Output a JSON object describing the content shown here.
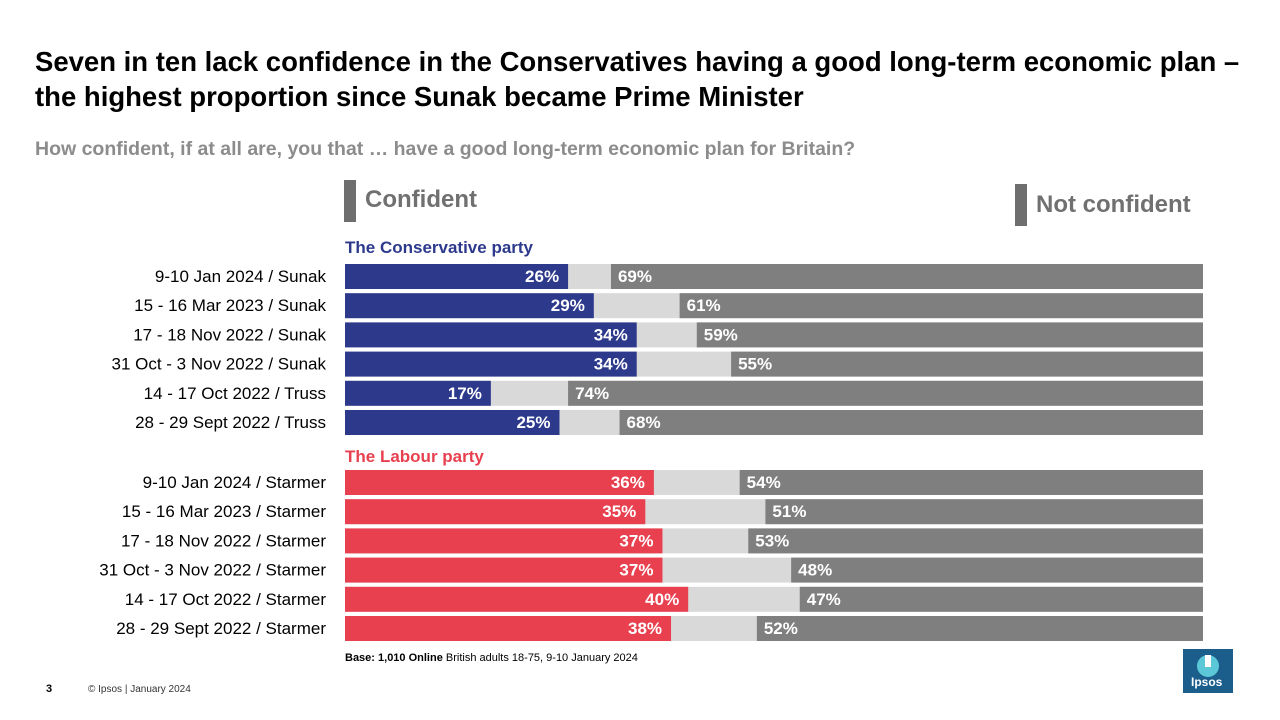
{
  "title": "Seven in ten lack confidence in the Conservatives having a good long-term economic plan – the highest proportion since Sunak became Prime Minister",
  "subtitle": "How confident, if at all are, you that … have a good long-term economic plan for Britain?",
  "legend": {
    "confident": "Confident",
    "not_confident": "Not confident"
  },
  "colors": {
    "conservative": "#2d3a8c",
    "labour": "#e8404f",
    "not_confident": "#7f7f7f",
    "neither": "#d9d9d9"
  },
  "chart_data": {
    "type": "bar",
    "stacked": true,
    "orientation": "horizontal",
    "xlim": [
      0,
      100
    ],
    "groups": [
      {
        "name": "The Conservative party",
        "color": "#2d3a8c",
        "rows": [
          {
            "label": "9-10 Jan 2024 / Sunak",
            "confident": 26,
            "not_confident": 69
          },
          {
            "label": "15 - 16 Mar 2023 / Sunak",
            "confident": 29,
            "not_confident": 61
          },
          {
            "label": "17 - 18 Nov 2022 / Sunak",
            "confident": 34,
            "not_confident": 59
          },
          {
            "label": "31 Oct - 3 Nov 2022 / Sunak",
            "confident": 34,
            "not_confident": 55
          },
          {
            "label": "14 - 17 Oct 2022 / Truss",
            "confident": 17,
            "not_confident": 74
          },
          {
            "label": "28 - 29 Sept 2022 / Truss",
            "confident": 25,
            "not_confident": 68
          }
        ]
      },
      {
        "name": "The Labour party",
        "color": "#e8404f",
        "rows": [
          {
            "label": "9-10 Jan 2024 / Starmer",
            "confident": 36,
            "not_confident": 54
          },
          {
            "label": "15 - 16 Mar 2023 / Starmer",
            "confident": 35,
            "not_confident": 51
          },
          {
            "label": "17 - 18 Nov 2022 / Starmer",
            "confident": 37,
            "not_confident": 53
          },
          {
            "label": "31 Oct - 3 Nov 2022 / Starmer",
            "confident": 37,
            "not_confident": 48
          },
          {
            "label": "14 - 17 Oct 2022 / Starmer",
            "confident": 40,
            "not_confident": 47
          },
          {
            "label": "28 - 29 Sept 2022 / Starmer",
            "confident": 38,
            "not_confident": 52
          }
        ]
      }
    ]
  },
  "footer": {
    "base_bold": "Base: 1,010 Online",
    "base_rest": "British adults 18-75, 9-10 January 2024",
    "page_number": "3",
    "copyright": "© Ipsos | January 2024"
  },
  "logo_text": "Ipsos"
}
